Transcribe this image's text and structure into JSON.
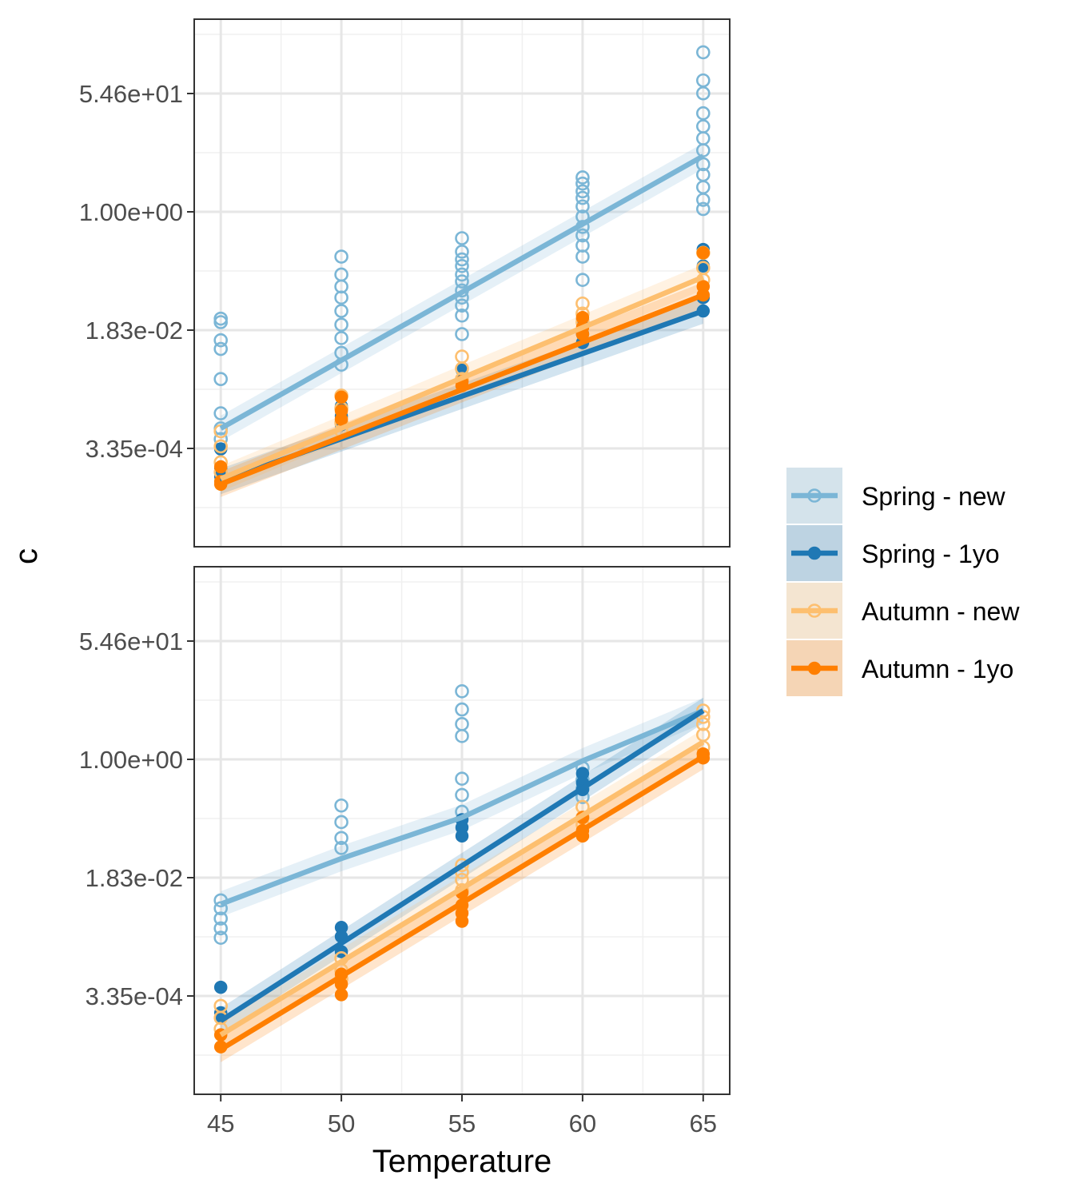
{
  "chart_data": {
    "type": "scatter",
    "xlabel": "Temperature",
    "ylabel": "c",
    "y_scale": "log",
    "x_ticks": [
      45,
      50,
      55,
      60,
      65
    ],
    "y_ticks": [
      "5.46e+01",
      "1.00e+00",
      "1.83e-02",
      "3.35e-04"
    ],
    "grid": true,
    "legend": {
      "placement": "right",
      "items": [
        {
          "label": "Spring - new",
          "color": "#7bb6d6",
          "marker": "open-circle"
        },
        {
          "label": "Spring - 1yo",
          "color": "#1f78b4",
          "marker": "filled-circle"
        },
        {
          "label": "Autumn - new",
          "color": "#fdbf6f",
          "marker": "open-circle"
        },
        {
          "label": "Autumn - 1yo",
          "color": "#ff7f00",
          "marker": "filled-circle"
        }
      ]
    },
    "panels": [
      {
        "fit_lines": [
          {
            "name": "Spring - new",
            "x": [
              45,
              65
            ],
            "y": [
              0.00066,
              6.6
            ]
          },
          {
            "name": "Spring - 1yo",
            "x": [
              45,
              65
            ],
            "y": [
              0.00011,
              0.035
            ]
          },
          {
            "name": "Autumn - new",
            "x": [
              45,
              65
            ],
            "y": [
              0.00012,
              0.11
            ]
          },
          {
            "name": "Autumn - 1yo",
            "x": [
              45,
              65
            ],
            "y": [
              0.0001,
              0.06
            ]
          }
        ],
        "points": [
          {
            "name": "Spring - new",
            "x": 45,
            "y": [
              0.027,
              0.024,
              0.013,
              0.0097,
              0.0035,
              0.0011,
              0.00066,
              0.00046
            ]
          },
          {
            "name": "Spring - new",
            "x": 50,
            "y": [
              0.22,
              0.12,
              0.08,
              0.055,
              0.035,
              0.022,
              0.014,
              0.0085,
              0.0057
            ]
          },
          {
            "name": "Spring - new",
            "x": 55,
            "y": [
              0.41,
              0.26,
              0.2,
              0.16,
              0.12,
              0.095,
              0.07,
              0.055,
              0.042,
              0.03,
              0.016
            ]
          },
          {
            "name": "Spring - new",
            "x": 60,
            "y": [
              3.2,
              2.6,
              2.0,
              1.6,
              1.2,
              0.85,
              0.6,
              0.45,
              0.32,
              0.22,
              0.1
            ]
          },
          {
            "name": "Spring - new",
            "x": 65,
            "y": [
              220,
              85,
              55,
              28,
              18,
              12,
              8,
              5,
              3.5,
              2.3,
              1.5,
              1.1
            ]
          },
          {
            "name": "Spring - 1yo",
            "x": 45,
            "y": [
              0.00033,
              0.00017,
              0.00013
            ]
          },
          {
            "name": "Spring - 1yo",
            "x": 50,
            "y": [
              0.0014,
              0.001,
              0.00075
            ]
          },
          {
            "name": "Spring - 1yo",
            "x": 55,
            "y": [
              0.0048,
              0.0033
            ]
          },
          {
            "name": "Spring - 1yo",
            "x": 60,
            "y": [
              0.026,
              0.016,
              0.012
            ]
          },
          {
            "name": "Spring - 1yo",
            "x": 65,
            "y": [
              0.28,
              0.16,
              0.055,
              0.035
            ]
          },
          {
            "name": "Autumn - new",
            "x": 45,
            "y": [
              0.0006,
              0.00036,
              0.00021,
              0.00015
            ]
          },
          {
            "name": "Autumn - new",
            "x": 50,
            "y": [
              0.002,
              0.0013,
              0.0008,
              0.0006
            ]
          },
          {
            "name": "Autumn - new",
            "x": 55,
            "y": [
              0.0075,
              0.005,
              0.0035
            ]
          },
          {
            "name": "Autumn - new",
            "x": 60,
            "y": [
              0.045,
              0.032,
              0.024
            ]
          },
          {
            "name": "Autumn - new",
            "x": 65,
            "y": [
              0.25,
              0.15,
              0.1
            ]
          },
          {
            "name": "Autumn - 1yo",
            "x": 45,
            "y": [
              0.00018,
              0.00011,
              0.0001
            ]
          },
          {
            "name": "Autumn - 1yo",
            "x": 50,
            "y": [
              0.0019,
              0.0012,
              0.0009
            ]
          },
          {
            "name": "Autumn - 1yo",
            "x": 55,
            "y": [
              0.0032,
              0.0028
            ]
          },
          {
            "name": "Autumn - 1yo",
            "x": 60,
            "y": [
              0.028,
              0.02,
              0.016
            ]
          },
          {
            "name": "Autumn - 1yo",
            "x": 65,
            "y": [
              0.25,
              0.08,
              0.06
            ]
          }
        ]
      },
      {
        "fit_lines": [
          {
            "name": "Spring - new",
            "x": [
              45,
              50,
              55,
              60,
              65
            ],
            "y": [
              0.0075,
              0.035,
              0.14,
              0.95,
              5.2
            ]
          },
          {
            "name": "Spring - 1yo",
            "x": [
              45,
              65
            ],
            "y": [
              0.000145,
              5.2
            ]
          },
          {
            "name": "Autumn - new",
            "x": [
              45,
              65
            ],
            "y": [
              9e-05,
              1.8
            ]
          },
          {
            "name": "Autumn - 1yo",
            "x": [
              45,
              65
            ],
            "y": [
              5.5e-05,
              1.1
            ]
          }
        ],
        "points": [
          {
            "name": "Spring - new",
            "x": 45,
            "y": [
              0.0085,
              0.0065,
              0.0046,
              0.0033,
              0.0024
            ]
          },
          {
            "name": "Spring - new",
            "x": 50,
            "y": [
              0.21,
              0.12,
              0.07,
              0.05
            ]
          },
          {
            "name": "Spring - new",
            "x": 55,
            "y": [
              10,
              5.4,
              3.3,
              2.2,
              0.52,
              0.3,
              0.17
            ]
          },
          {
            "name": "Spring - new",
            "x": 60,
            "y": [
              0.75,
              0.5,
              0.37,
              0.28
            ]
          },
          {
            "name": "Spring - 1yo",
            "x": 45,
            "y": [
              0.00045,
              0.00019,
              0.00016
            ]
          },
          {
            "name": "Spring - 1yo",
            "x": 50,
            "y": [
              0.0034,
              0.0025,
              0.0015
            ]
          },
          {
            "name": "Spring - 1yo",
            "x": 55,
            "y": [
              0.13,
              0.1,
              0.075
            ]
          },
          {
            "name": "Spring - 1yo",
            "x": 60,
            "y": [
              0.62,
              0.45,
              0.36
            ]
          },
          {
            "name": "Autumn - new",
            "x": 45,
            "y": [
              0.00024,
              0.00016,
              0.00011
            ]
          },
          {
            "name": "Autumn - new",
            "x": 50,
            "y": [
              0.0012,
              0.0008,
              0.0006
            ]
          },
          {
            "name": "Autumn - new",
            "x": 55,
            "y": [
              0.028,
              0.022,
              0.017,
              0.012
            ]
          },
          {
            "name": "Autumn - new",
            "x": 60,
            "y": [
              0.2,
              0.14,
              0.11
            ]
          },
          {
            "name": "Autumn - new",
            "x": 65,
            "y": [
              5.2,
              4.2,
              3.3,
              2.3,
              1.5
            ]
          },
          {
            "name": "Autumn - 1yo",
            "x": 45,
            "y": [
              9e-05,
              6e-05
            ]
          },
          {
            "name": "Autumn - 1yo",
            "x": 50,
            "y": [
              0.0007,
              0.0005,
              0.00035
            ]
          },
          {
            "name": "Autumn - 1yo",
            "x": 55,
            "y": [
              0.011,
              0.0072,
              0.0055,
              0.0042
            ]
          },
          {
            "name": "Autumn - 1yo",
            "x": 60,
            "y": [
              0.14,
              0.09,
              0.075
            ]
          },
          {
            "name": "Autumn - 1yo",
            "x": 65,
            "y": [
              1.2,
              1.05
            ]
          }
        ]
      }
    ]
  }
}
